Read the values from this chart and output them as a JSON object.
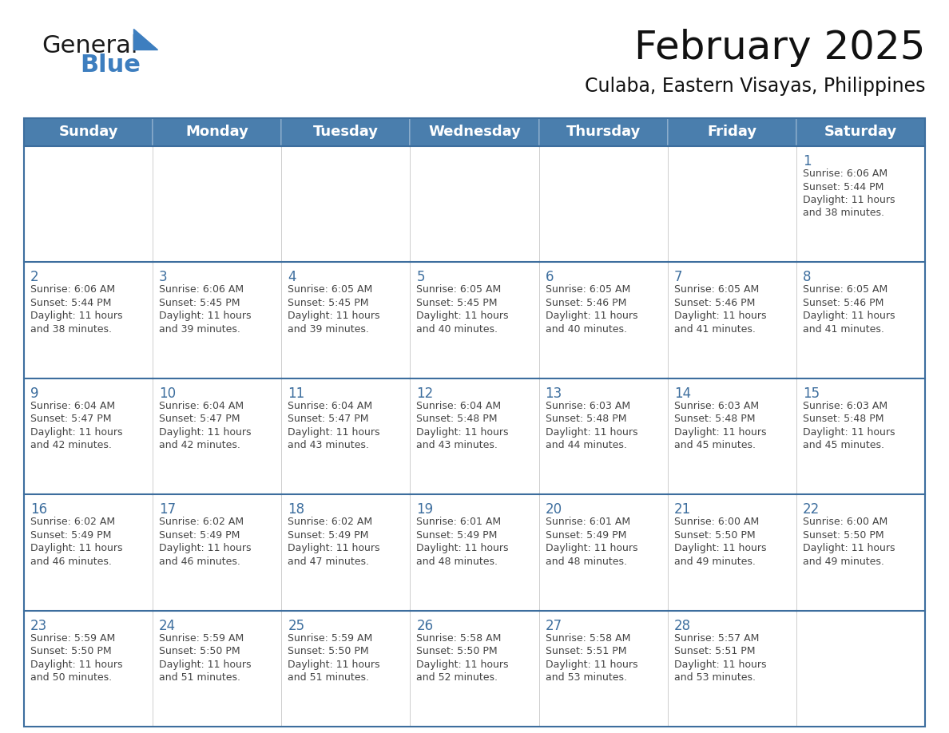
{
  "title": "February 2025",
  "subtitle": "Culaba, Eastern Visayas, Philippines",
  "header_bg_color": "#4a7ead",
  "header_text_color": "#ffffff",
  "cell_bg_color": "#ffffff",
  "cell_border_color": "#3d6e9e",
  "row_top_border_color": "#3d6e9e",
  "day_number_color": "#3d6e9e",
  "cell_text_color": "#444444",
  "days_of_week": [
    "Sunday",
    "Monday",
    "Tuesday",
    "Wednesday",
    "Thursday",
    "Friday",
    "Saturday"
  ],
  "calendar_data": [
    [
      null,
      null,
      null,
      null,
      null,
      null,
      {
        "day": 1,
        "sunrise": "6:06 AM",
        "sunset": "5:44 PM",
        "daylight": "11 hours\nand 38 minutes."
      }
    ],
    [
      {
        "day": 2,
        "sunrise": "6:06 AM",
        "sunset": "5:44 PM",
        "daylight": "11 hours\nand 38 minutes."
      },
      {
        "day": 3,
        "sunrise": "6:06 AM",
        "sunset": "5:45 PM",
        "daylight": "11 hours\nand 39 minutes."
      },
      {
        "day": 4,
        "sunrise": "6:05 AM",
        "sunset": "5:45 PM",
        "daylight": "11 hours\nand 39 minutes."
      },
      {
        "day": 5,
        "sunrise": "6:05 AM",
        "sunset": "5:45 PM",
        "daylight": "11 hours\nand 40 minutes."
      },
      {
        "day": 6,
        "sunrise": "6:05 AM",
        "sunset": "5:46 PM",
        "daylight": "11 hours\nand 40 minutes."
      },
      {
        "day": 7,
        "sunrise": "6:05 AM",
        "sunset": "5:46 PM",
        "daylight": "11 hours\nand 41 minutes."
      },
      {
        "day": 8,
        "sunrise": "6:05 AM",
        "sunset": "5:46 PM",
        "daylight": "11 hours\nand 41 minutes."
      }
    ],
    [
      {
        "day": 9,
        "sunrise": "6:04 AM",
        "sunset": "5:47 PM",
        "daylight": "11 hours\nand 42 minutes."
      },
      {
        "day": 10,
        "sunrise": "6:04 AM",
        "sunset": "5:47 PM",
        "daylight": "11 hours\nand 42 minutes."
      },
      {
        "day": 11,
        "sunrise": "6:04 AM",
        "sunset": "5:47 PM",
        "daylight": "11 hours\nand 43 minutes."
      },
      {
        "day": 12,
        "sunrise": "6:04 AM",
        "sunset": "5:48 PM",
        "daylight": "11 hours\nand 43 minutes."
      },
      {
        "day": 13,
        "sunrise": "6:03 AM",
        "sunset": "5:48 PM",
        "daylight": "11 hours\nand 44 minutes."
      },
      {
        "day": 14,
        "sunrise": "6:03 AM",
        "sunset": "5:48 PM",
        "daylight": "11 hours\nand 45 minutes."
      },
      {
        "day": 15,
        "sunrise": "6:03 AM",
        "sunset": "5:48 PM",
        "daylight": "11 hours\nand 45 minutes."
      }
    ],
    [
      {
        "day": 16,
        "sunrise": "6:02 AM",
        "sunset": "5:49 PM",
        "daylight": "11 hours\nand 46 minutes."
      },
      {
        "day": 17,
        "sunrise": "6:02 AM",
        "sunset": "5:49 PM",
        "daylight": "11 hours\nand 46 minutes."
      },
      {
        "day": 18,
        "sunrise": "6:02 AM",
        "sunset": "5:49 PM",
        "daylight": "11 hours\nand 47 minutes."
      },
      {
        "day": 19,
        "sunrise": "6:01 AM",
        "sunset": "5:49 PM",
        "daylight": "11 hours\nand 48 minutes."
      },
      {
        "day": 20,
        "sunrise": "6:01 AM",
        "sunset": "5:49 PM",
        "daylight": "11 hours\nand 48 minutes."
      },
      {
        "day": 21,
        "sunrise": "6:00 AM",
        "sunset": "5:50 PM",
        "daylight": "11 hours\nand 49 minutes."
      },
      {
        "day": 22,
        "sunrise": "6:00 AM",
        "sunset": "5:50 PM",
        "daylight": "11 hours\nand 49 minutes."
      }
    ],
    [
      {
        "day": 23,
        "sunrise": "5:59 AM",
        "sunset": "5:50 PM",
        "daylight": "11 hours\nand 50 minutes."
      },
      {
        "day": 24,
        "sunrise": "5:59 AM",
        "sunset": "5:50 PM",
        "daylight": "11 hours\nand 51 minutes."
      },
      {
        "day": 25,
        "sunrise": "5:59 AM",
        "sunset": "5:50 PM",
        "daylight": "11 hours\nand 51 minutes."
      },
      {
        "day": 26,
        "sunrise": "5:58 AM",
        "sunset": "5:50 PM",
        "daylight": "11 hours\nand 52 minutes."
      },
      {
        "day": 27,
        "sunrise": "5:58 AM",
        "sunset": "5:51 PM",
        "daylight": "11 hours\nand 53 minutes."
      },
      {
        "day": 28,
        "sunrise": "5:57 AM",
        "sunset": "5:51 PM",
        "daylight": "11 hours\nand 53 minutes."
      },
      null
    ]
  ],
  "logo_text_general": "General",
  "logo_text_blue": "Blue",
  "logo_color_general": "#1a1a1a",
  "logo_color_blue": "#3d7ebf",
  "logo_triangle_color": "#3d7ebf",
  "title_fontsize": 36,
  "subtitle_fontsize": 17,
  "header_fontsize": 13,
  "day_num_fontsize": 12,
  "cell_text_fontsize": 9
}
